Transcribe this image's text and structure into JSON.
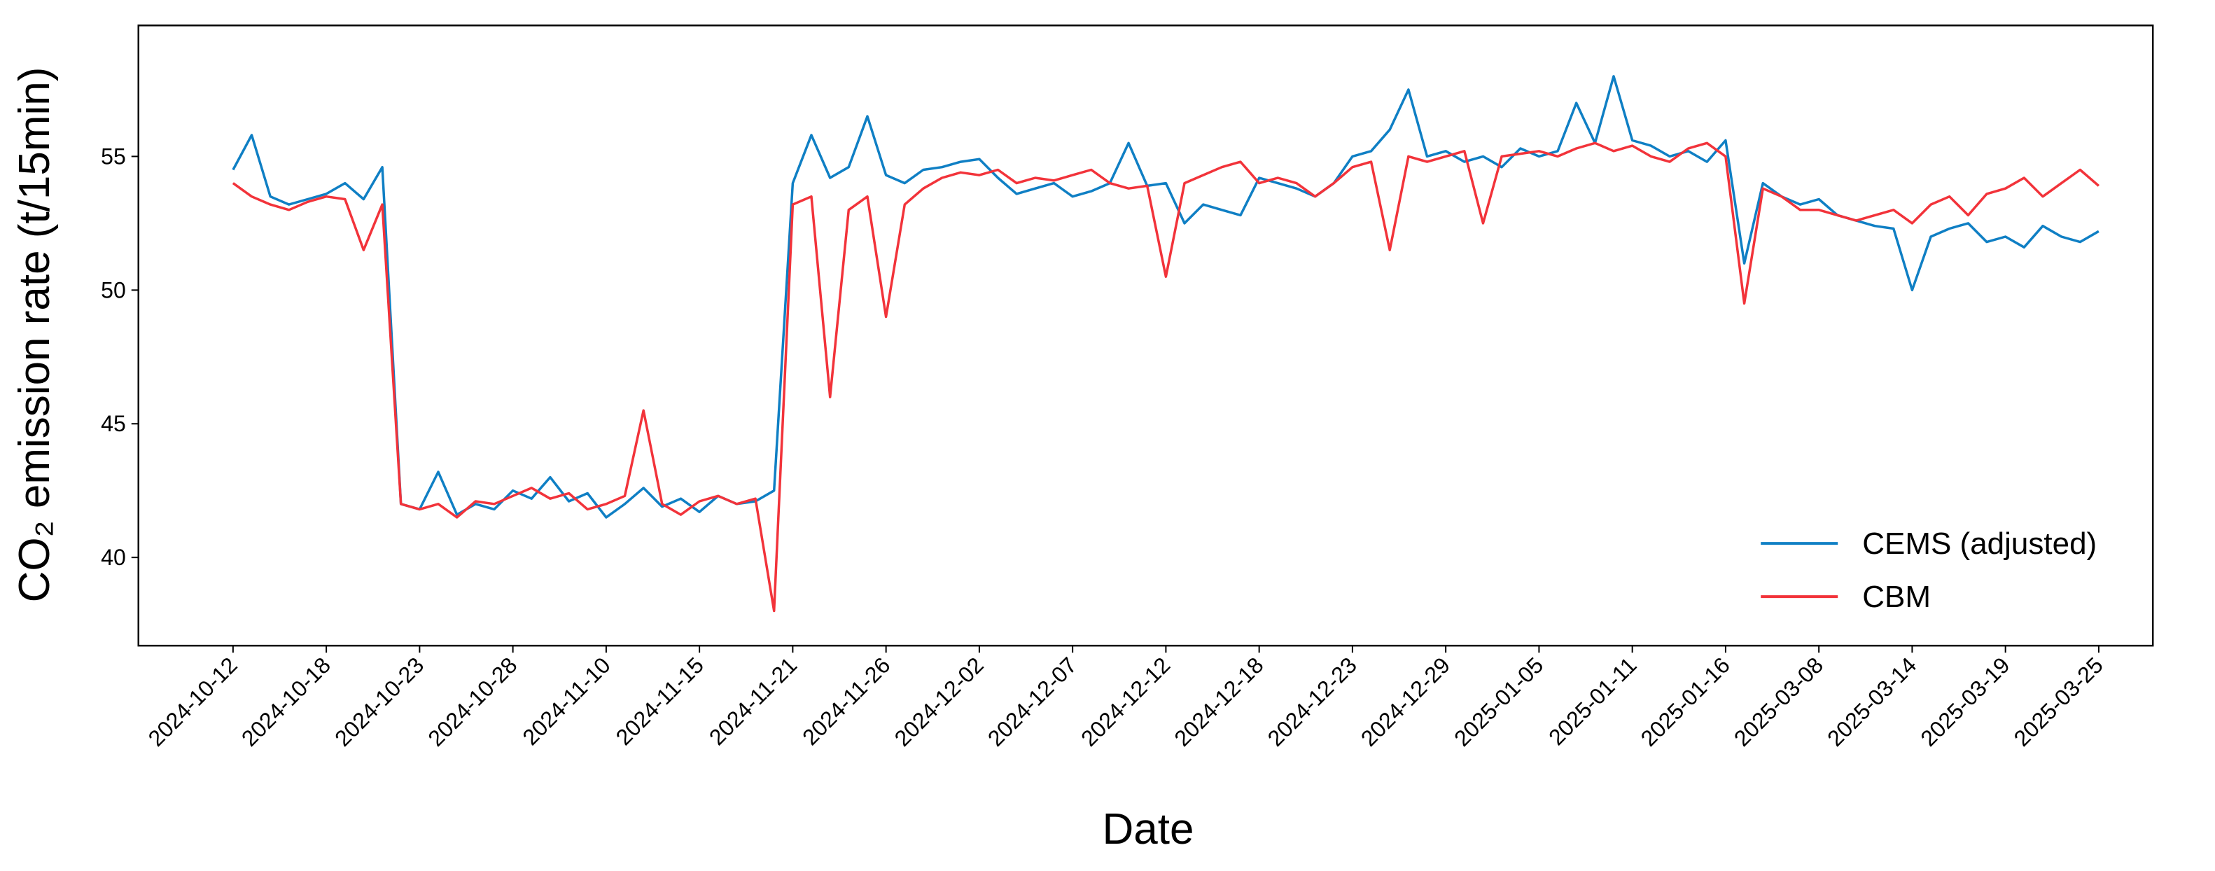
{
  "chart_data": {
    "type": "line",
    "xlabel": "Date",
    "ylabel": "CO₂ emission rate (t/15min)",
    "x": [
      0,
      1,
      2,
      3,
      4,
      5,
      6,
      7,
      8,
      9,
      10,
      11,
      12,
      13,
      14,
      15,
      16,
      17,
      18,
      19,
      20,
      21,
      22,
      23,
      24,
      25,
      26,
      27,
      28,
      29,
      30,
      31,
      32,
      33,
      34,
      35,
      36,
      37,
      38,
      39,
      40,
      41,
      42,
      43,
      44,
      45,
      46,
      47,
      48,
      49,
      50,
      51,
      52,
      53,
      54,
      55,
      56,
      57,
      58,
      59,
      60,
      61,
      62,
      63,
      64,
      65,
      66,
      67,
      68,
      69,
      70,
      71,
      72,
      73,
      74,
      75,
      76,
      77,
      78,
      79,
      80,
      81,
      82,
      83,
      84,
      85,
      86,
      87,
      88,
      89,
      90,
      91,
      92,
      93,
      94,
      95,
      96,
      97,
      98,
      99,
      100
    ],
    "series": [
      {
        "name": "CEMS (adjusted)",
        "color": "#0f7fc4",
        "values": [
          54.5,
          55.8,
          53.5,
          53.2,
          53.4,
          53.6,
          54.0,
          53.4,
          54.6,
          42.0,
          41.8,
          43.2,
          41.6,
          42.0,
          41.8,
          42.5,
          42.2,
          43.0,
          42.1,
          42.4,
          41.5,
          42.0,
          42.6,
          41.9,
          42.2,
          41.7,
          42.3,
          42.0,
          42.1,
          42.5,
          54.0,
          55.8,
          54.2,
          54.6,
          56.5,
          54.3,
          54.0,
          54.5,
          54.6,
          54.8,
          54.9,
          54.2,
          53.6,
          53.8,
          54.0,
          53.5,
          53.7,
          54.0,
          55.5,
          53.9,
          54.0,
          52.5,
          53.2,
          53.0,
          52.8,
          54.2,
          54.0,
          53.8,
          53.5,
          54.0,
          55.0,
          55.2,
          56.0,
          57.5,
          55.0,
          55.2,
          54.8,
          55.0,
          54.6,
          55.3,
          55.0,
          55.2,
          57.0,
          55.5,
          58.0,
          55.6,
          55.4,
          55.0,
          55.2,
          54.8,
          55.6,
          51.0,
          54.0,
          53.5,
          53.2,
          53.4,
          52.8,
          52.6,
          52.4,
          52.3,
          50.0,
          52.0,
          52.3,
          52.5,
          51.8,
          52.0,
          51.6,
          52.4,
          52.0,
          51.8,
          52.2
        ]
      },
      {
        "name": "CBM",
        "color": "#f2333a",
        "values": [
          54.0,
          53.5,
          53.2,
          53.0,
          53.3,
          53.5,
          53.4,
          51.5,
          53.2,
          42.0,
          41.8,
          42.0,
          41.5,
          42.1,
          42.0,
          42.3,
          42.6,
          42.2,
          42.4,
          41.8,
          42.0,
          42.3,
          45.5,
          42.0,
          41.6,
          42.1,
          42.3,
          42.0,
          42.2,
          38.0,
          53.2,
          53.5,
          46.0,
          53.0,
          53.5,
          49.0,
          53.2,
          53.8,
          54.2,
          54.4,
          54.3,
          54.5,
          54.0,
          54.2,
          54.1,
          54.3,
          54.5,
          54.0,
          53.8,
          53.9,
          50.5,
          54.0,
          54.3,
          54.6,
          54.8,
          54.0,
          54.2,
          54.0,
          53.5,
          54.0,
          54.6,
          54.8,
          51.5,
          55.0,
          54.8,
          55.0,
          55.2,
          52.5,
          55.0,
          55.1,
          55.2,
          55.0,
          55.3,
          55.5,
          55.2,
          55.4,
          55.0,
          54.8,
          55.3,
          55.5,
          55.0,
          49.5,
          53.8,
          53.5,
          53.0,
          53.0,
          52.8,
          52.6,
          52.8,
          53.0,
          52.5,
          53.2,
          53.5,
          52.8,
          53.6,
          53.8,
          54.2,
          53.5,
          54.0,
          54.5,
          53.9
        ]
      }
    ],
    "xlim": [
      -5.07,
      102.9
    ],
    "xticks": [
      {
        "value": 0,
        "label": "2024-10-12"
      },
      {
        "value": 5,
        "label": "2024-10-18"
      },
      {
        "value": 10,
        "label": "2024-10-23"
      },
      {
        "value": 15,
        "label": "2024-10-28"
      },
      {
        "value": 20,
        "label": "2024-11-10"
      },
      {
        "value": 25,
        "label": "2024-11-15"
      },
      {
        "value": 30,
        "label": "2024-11-21"
      },
      {
        "value": 35,
        "label": "2024-11-26"
      },
      {
        "value": 40,
        "label": "2024-12-02"
      },
      {
        "value": 45,
        "label": "2024-12-07"
      },
      {
        "value": 50,
        "label": "2024-12-12"
      },
      {
        "value": 55,
        "label": "2024-12-18"
      },
      {
        "value": 60,
        "label": "2024-12-23"
      },
      {
        "value": 65,
        "label": "2024-12-29"
      },
      {
        "value": 70,
        "label": "2025-01-05"
      },
      {
        "value": 75,
        "label": "2025-01-11"
      },
      {
        "value": 80,
        "label": "2025-01-16"
      },
      {
        "value": 85,
        "label": "2025-03-08"
      },
      {
        "value": 90,
        "label": "2025-03-14"
      },
      {
        "value": 95,
        "label": "2025-03-19"
      },
      {
        "value": 100,
        "label": "2025-03-25"
      }
    ],
    "ylim": [
      36.7,
      59.9
    ],
    "yticks": [
      40,
      45,
      50,
      55
    ],
    "grid": false,
    "legend": "lower right"
  }
}
